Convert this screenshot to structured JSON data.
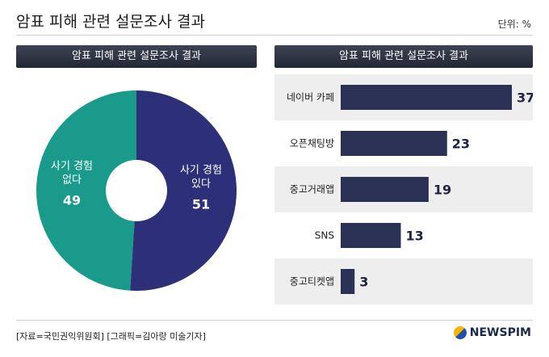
{
  "header": {
    "title": "암표 피해 관련 설문조사 결과",
    "unit": "단위: %"
  },
  "panels": {
    "left_title": "암표 피해 관련 설문조사 결과",
    "right_title": "암표 피해 관련 설문조사 결과"
  },
  "footer": {
    "source": "[자료=국민권익위원회] [그래픽=김아랑 미술기자]",
    "logo": "NEWSPIM"
  },
  "colors": {
    "teal": "#1a9a8a",
    "navy": "#2d2f78",
    "bar": "#2b3154",
    "band": "#eeeeee"
  },
  "chart_data": [
    {
      "type": "pie",
      "title": "암표 피해 관련 설문조사 결과",
      "slices": [
        {
          "label_lines": [
            "사기 경험",
            "없다"
          ],
          "value": 49
        },
        {
          "label_lines": [
            "사기 경험",
            "있다"
          ],
          "value": 51
        }
      ]
    },
    {
      "type": "bar",
      "orientation": "horizontal",
      "title": "암표 피해 관련 설문조사 결과",
      "categories": [
        "네이버 카페",
        "오픈채팅방",
        "중고거래앱",
        "SNS",
        "중고티켓앱"
      ],
      "values": [
        37,
        23,
        19,
        13,
        3
      ],
      "xlim": [
        0,
        37
      ]
    }
  ]
}
